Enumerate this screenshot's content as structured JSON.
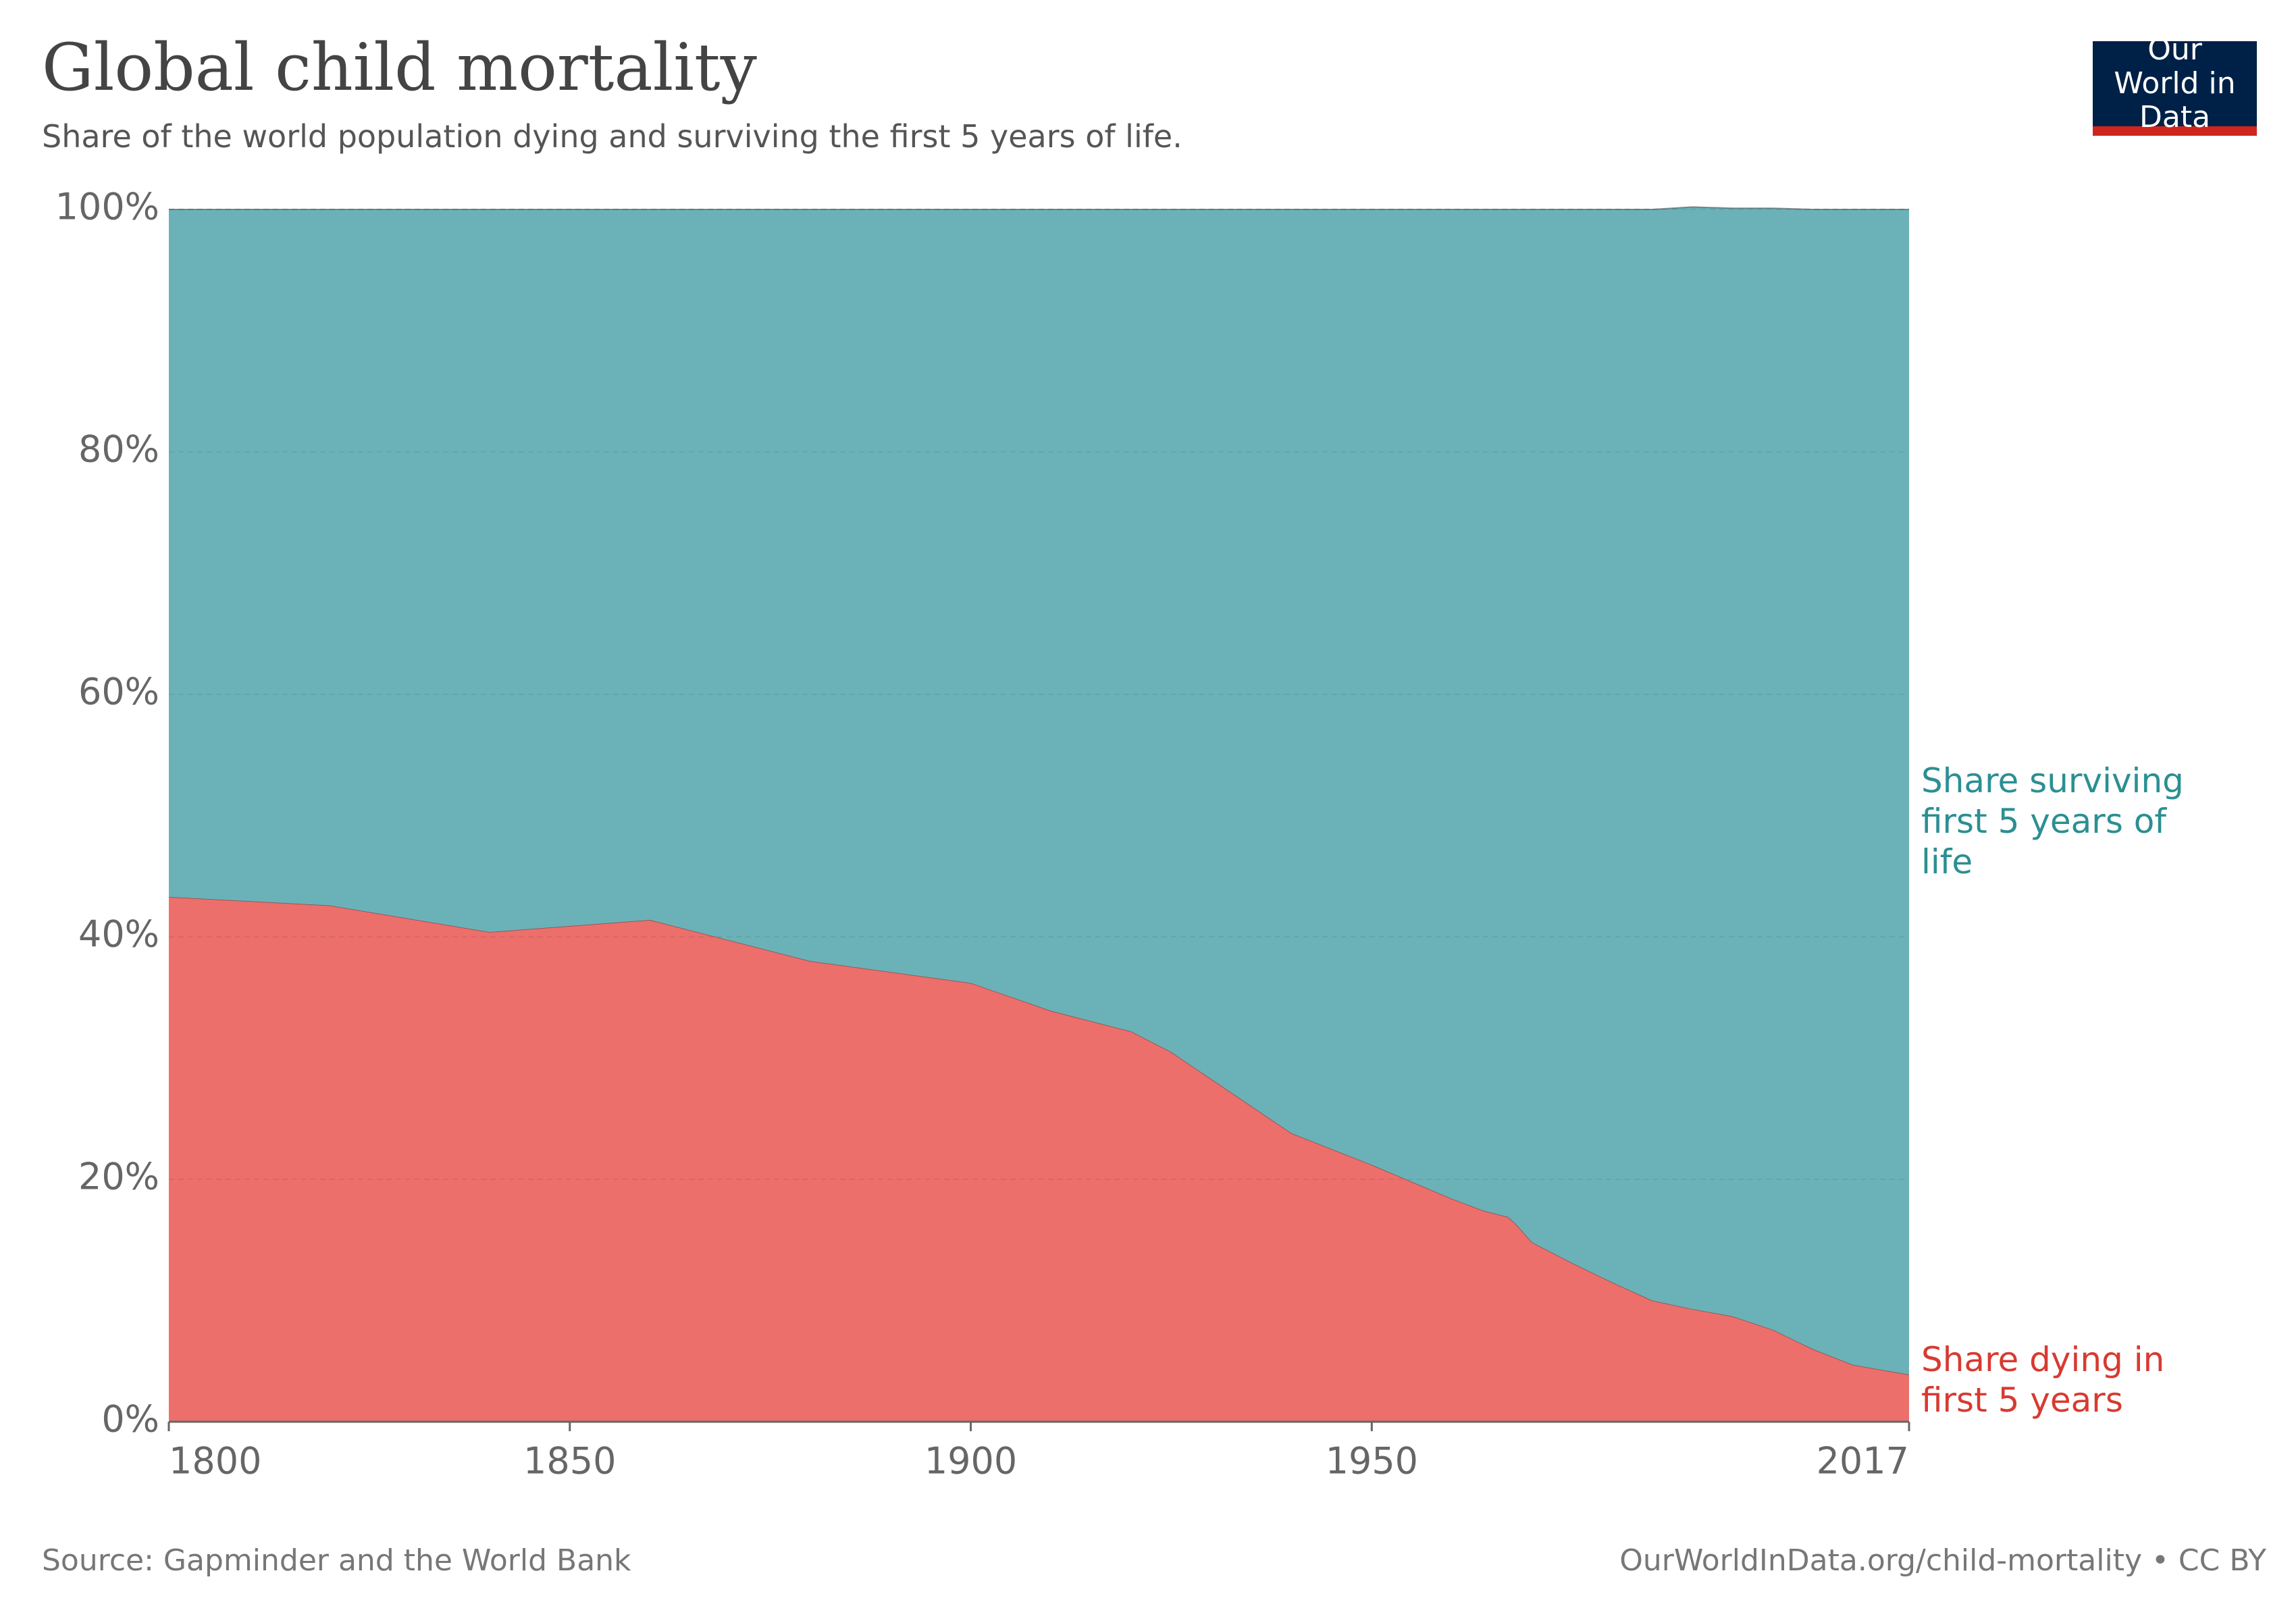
{
  "chart_data": {
    "type": "stacked-area",
    "title": "Global child mortality",
    "subtitle": "Share of the world population dying and surviving the first 5 years of life.",
    "logo": "Our World in Data",
    "source": "Source: Gapminder and the World Bank",
    "url": "OurWorldInData.org/child-mortality • CC BY",
    "x": [
      1800,
      1820,
      1840,
      1860,
      1880,
      1900,
      1910,
      1920,
      1925,
      1940,
      1950,
      1960,
      1964,
      1967,
      1968,
      1970,
      1975,
      1980,
      1985,
      1990,
      1995,
      2000,
      2005,
      2010,
      2017
    ],
    "series": [
      {
        "name": "Share dying in first 5 years",
        "color": "#ec6f6c",
        "label_color": "#d73a31",
        "values": [
          43.3,
          42.6,
          40.4,
          41.4,
          38.0,
          36.2,
          33.9,
          32.2,
          30.5,
          23.8,
          21.2,
          18.4,
          17.4,
          16.9,
          16.3,
          14.8,
          13.1,
          11.5,
          10.0,
          9.3,
          8.7,
          7.6,
          6.0,
          4.7,
          3.9
        ]
      },
      {
        "name": "Share surviving first 5 years of life",
        "color": "#6ab2b8",
        "label_color": "#2b8f92",
        "values": [
          56.7,
          57.4,
          59.6,
          58.6,
          62.0,
          63.8,
          66.1,
          67.8,
          69.5,
          76.2,
          78.8,
          81.6,
          82.6,
          83.1,
          83.7,
          85.2,
          86.9,
          88.5,
          90.0,
          90.9,
          91.4,
          92.5,
          94.0,
          95.3,
          96.1
        ]
      }
    ],
    "xlim": [
      1800,
      2017
    ],
    "xticks": [
      1800,
      1850,
      1900,
      1950,
      2017
    ],
    "ylim": [
      0,
      100
    ],
    "yticks": [
      {
        "value": 0,
        "label": "0%"
      },
      {
        "value": 20,
        "label": "20%"
      },
      {
        "value": 40,
        "label": "40%"
      },
      {
        "value": 60,
        "label": "60%"
      },
      {
        "value": 80,
        "label": "80%"
      },
      {
        "value": 100,
        "label": "100%"
      }
    ],
    "grid": true
  }
}
